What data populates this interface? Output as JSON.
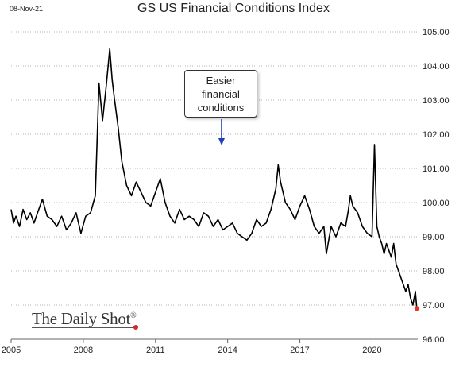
{
  "header": {
    "date_stamp": "08-Nov-21"
  },
  "watermark": {
    "text": "The Daily Shot",
    "mark": "®"
  },
  "chart_data": {
    "type": "line",
    "title": "GS US Financial Conditions Index",
    "xlabel": "",
    "ylabel": "",
    "xlim": [
      2005,
      2021.9
    ],
    "ylim": [
      96.0,
      105.0
    ],
    "x_ticks": [
      "2005",
      "2008",
      "2011",
      "2014",
      "2017",
      "2020"
    ],
    "y_ticks": [
      "105.00",
      "104.00",
      "103.00",
      "102.00",
      "101.00",
      "100.00",
      "99.00",
      "98.00",
      "97.00",
      "96.00"
    ],
    "grid": "horizontal-dotted",
    "annotation": {
      "lines": [
        "Easier",
        "financial",
        "conditions"
      ],
      "arrow": "down",
      "arrow_color": "#1f3fbf"
    },
    "end_marker_color": "#e8312b",
    "line_color": "#000000",
    "series": [
      {
        "x": [
          2005.0,
          2005.1,
          2005.2,
          2005.35,
          2005.5,
          2005.65,
          2005.8,
          2005.95,
          2006.1,
          2006.3,
          2006.5,
          2006.7,
          2006.9,
          2007.1,
          2007.3,
          2007.5,
          2007.7,
          2007.9,
          2008.1,
          2008.3,
          2008.5,
          2008.65,
          2008.8,
          2008.95,
          2009.1,
          2009.2,
          2009.3,
          2009.45,
          2009.6,
          2009.8,
          2010.0,
          2010.2,
          2010.4,
          2010.6,
          2010.8,
          2011.0,
          2011.2,
          2011.4,
          2011.6,
          2011.8,
          2012.0,
          2012.2,
          2012.4,
          2012.6,
          2012.8,
          2013.0,
          2013.2,
          2013.4,
          2013.6,
          2013.8,
          2014.0,
          2014.2,
          2014.4,
          2014.6,
          2014.8,
          2015.0,
          2015.2,
          2015.4,
          2015.6,
          2015.8,
          2016.0,
          2016.1,
          2016.2,
          2016.4,
          2016.6,
          2016.8,
          2017.0,
          2017.2,
          2017.4,
          2017.6,
          2017.8,
          2018.0,
          2018.1,
          2018.3,
          2018.5,
          2018.7,
          2018.9,
          2019.0,
          2019.1,
          2019.2,
          2019.4,
          2019.6,
          2019.8,
          2020.0,
          2020.1,
          2020.15,
          2020.2,
          2020.3,
          2020.4,
          2020.5,
          2020.6,
          2020.7,
          2020.8,
          2020.9,
          2021.0,
          2021.1,
          2021.2,
          2021.3,
          2021.4,
          2021.5,
          2021.6,
          2021.7,
          2021.8,
          2021.86
        ],
        "y": [
          99.8,
          99.4,
          99.6,
          99.3,
          99.8,
          99.5,
          99.7,
          99.4,
          99.7,
          100.1,
          99.6,
          99.5,
          99.3,
          99.6,
          99.2,
          99.4,
          99.7,
          99.1,
          99.6,
          99.7,
          100.2,
          103.5,
          102.4,
          103.4,
          104.5,
          103.6,
          103.0,
          102.2,
          101.2,
          100.5,
          100.2,
          100.6,
          100.3,
          100.0,
          99.9,
          100.3,
          100.7,
          100.0,
          99.6,
          99.4,
          99.8,
          99.5,
          99.6,
          99.5,
          99.3,
          99.7,
          99.6,
          99.3,
          99.5,
          99.2,
          99.3,
          99.4,
          99.1,
          99.0,
          98.9,
          99.1,
          99.5,
          99.3,
          99.4,
          99.8,
          100.4,
          101.1,
          100.6,
          100.0,
          99.8,
          99.5,
          99.9,
          100.2,
          99.8,
          99.3,
          99.1,
          99.3,
          98.5,
          99.3,
          99.0,
          99.4,
          99.3,
          99.7,
          100.2,
          99.9,
          99.7,
          99.3,
          99.1,
          99.0,
          101.7,
          100.5,
          99.3,
          99.0,
          98.8,
          98.5,
          98.8,
          98.6,
          98.4,
          98.8,
          98.2,
          98.0,
          97.8,
          97.6,
          97.4,
          97.6,
          97.2,
          97.0,
          97.4,
          96.9
        ]
      }
    ]
  }
}
